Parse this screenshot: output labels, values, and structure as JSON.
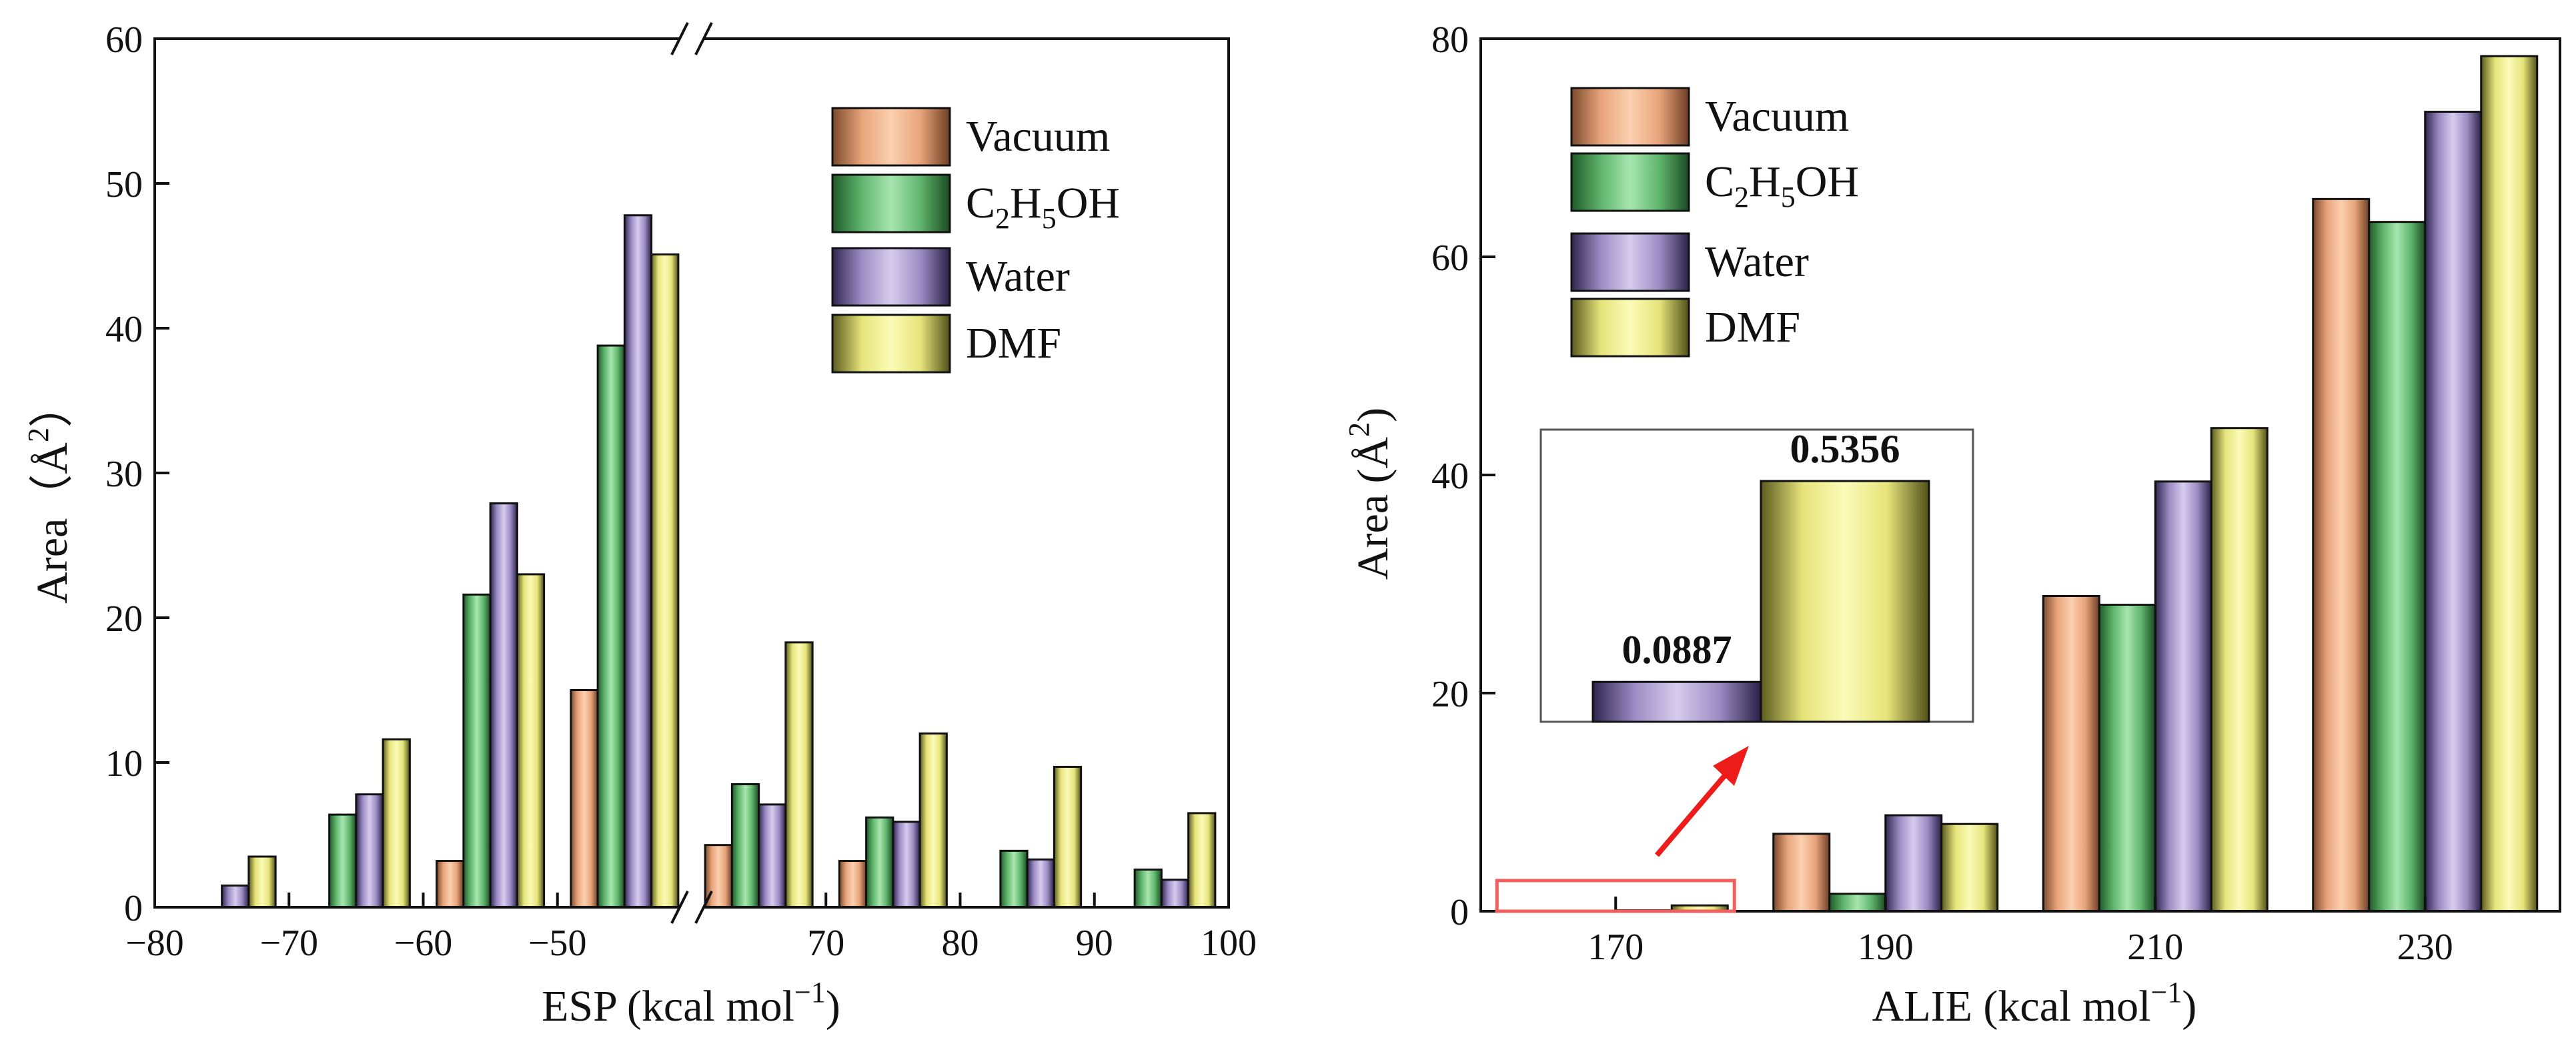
{
  "colors": {
    "Vacuum": "#f2b48a",
    "C2H5OH": "#7fcf8a",
    "Water": "#b9a9d6",
    "DMF": "#f2f08e",
    "highlight": "#f06060",
    "arrow": "#ee1b1b"
  },
  "chart_data": [
    {
      "type": "bar",
      "title": "",
      "xlabel_main": "ESP (kcal mol",
      "xlabel_sup": "−1",
      "xlabel_close": ")",
      "ylabel_main": "Area（Å",
      "ylabel_sup": "2",
      "ylabel_close": "）",
      "ylim": [
        0,
        60
      ],
      "yticks": [
        "0",
        "10",
        "20",
        "30",
        "40",
        "50",
        "60"
      ],
      "axis_break": true,
      "xticks_left": [
        "−80",
        "−70",
        "−60",
        "−50"
      ],
      "xticks_right": [
        "70",
        "80",
        "90",
        "100"
      ],
      "legend": {
        "position": "top-right",
        "entries": [
          {
            "key": "Vacuum",
            "label": "Vacuum",
            "sub": ""
          },
          {
            "key": "C2H5OH",
            "label": "C2H5OH",
            "sub": "chem"
          },
          {
            "key": "Water",
            "label": "Water",
            "sub": ""
          },
          {
            "key": "DMF",
            "label": "DMF",
            "sub": ""
          }
        ]
      },
      "series": [
        {
          "name": "Vacuum",
          "bins": [
            -75,
            -65,
            -55,
            -45,
            65,
            75,
            85,
            95
          ],
          "values": [
            0,
            0,
            3.2,
            15.0,
            4.3,
            3.2,
            0,
            0
          ]
        },
        {
          "name": "C2H5OH",
          "bins": [
            -75,
            -65,
            -55,
            -45,
            65,
            75,
            85,
            95
          ],
          "values": [
            0,
            6.4,
            21.6,
            38.8,
            8.5,
            6.2,
            3.9,
            2.6
          ]
        },
        {
          "name": "Water",
          "bins": [
            -75,
            -65,
            -55,
            -45,
            65,
            75,
            85,
            95
          ],
          "values": [
            1.5,
            7.8,
            27.9,
            47.8,
            7.1,
            5.9,
            3.3,
            1.9
          ]
        },
        {
          "name": "DMF",
          "bins": [
            -75,
            -65,
            -55,
            -45,
            65,
            75,
            85,
            95
          ],
          "values": [
            3.5,
            11.6,
            23.0,
            45.1,
            18.3,
            12.0,
            9.7,
            6.5
          ]
        }
      ]
    },
    {
      "type": "bar",
      "title": "",
      "xlabel_main": "ALIE (kcal mol",
      "xlabel_sup": "−1",
      "xlabel_close": ")",
      "ylabel_main": "Area (Å",
      "ylabel_sup": "2",
      "ylabel_close": ")",
      "ylim": [
        0,
        80
      ],
      "yticks": [
        "0",
        "20",
        "40",
        "60",
        "80"
      ],
      "categories": [
        "170",
        "190",
        "210",
        "230"
      ],
      "legend": {
        "position": "top-left",
        "entries": [
          {
            "key": "Vacuum",
            "label": "Vacuum",
            "sub": ""
          },
          {
            "key": "C2H5OH",
            "label": "C2H5OH",
            "sub": "chem"
          },
          {
            "key": "Water",
            "label": "Water",
            "sub": ""
          },
          {
            "key": "DMF",
            "label": "DMF",
            "sub": ""
          }
        ]
      },
      "series": [
        {
          "name": "Vacuum",
          "values": [
            0,
            7.1,
            28.9,
            65.3
          ]
        },
        {
          "name": "C2H5OH",
          "values": [
            0,
            1.6,
            28.1,
            63.2
          ]
        },
        {
          "name": "Water",
          "values": [
            0.0887,
            8.8,
            39.4,
            73.3
          ]
        },
        {
          "name": "DMF",
          "values": [
            0.5356,
            8.0,
            44.3,
            78.4
          ]
        }
      ],
      "inset": {
        "labels": [
          "0.0887",
          "0.5356"
        ],
        "series": [
          "Water",
          "DMF"
        ],
        "values": [
          0.0887,
          0.5356
        ],
        "ylim": [
          0,
          0.65
        ]
      }
    }
  ]
}
